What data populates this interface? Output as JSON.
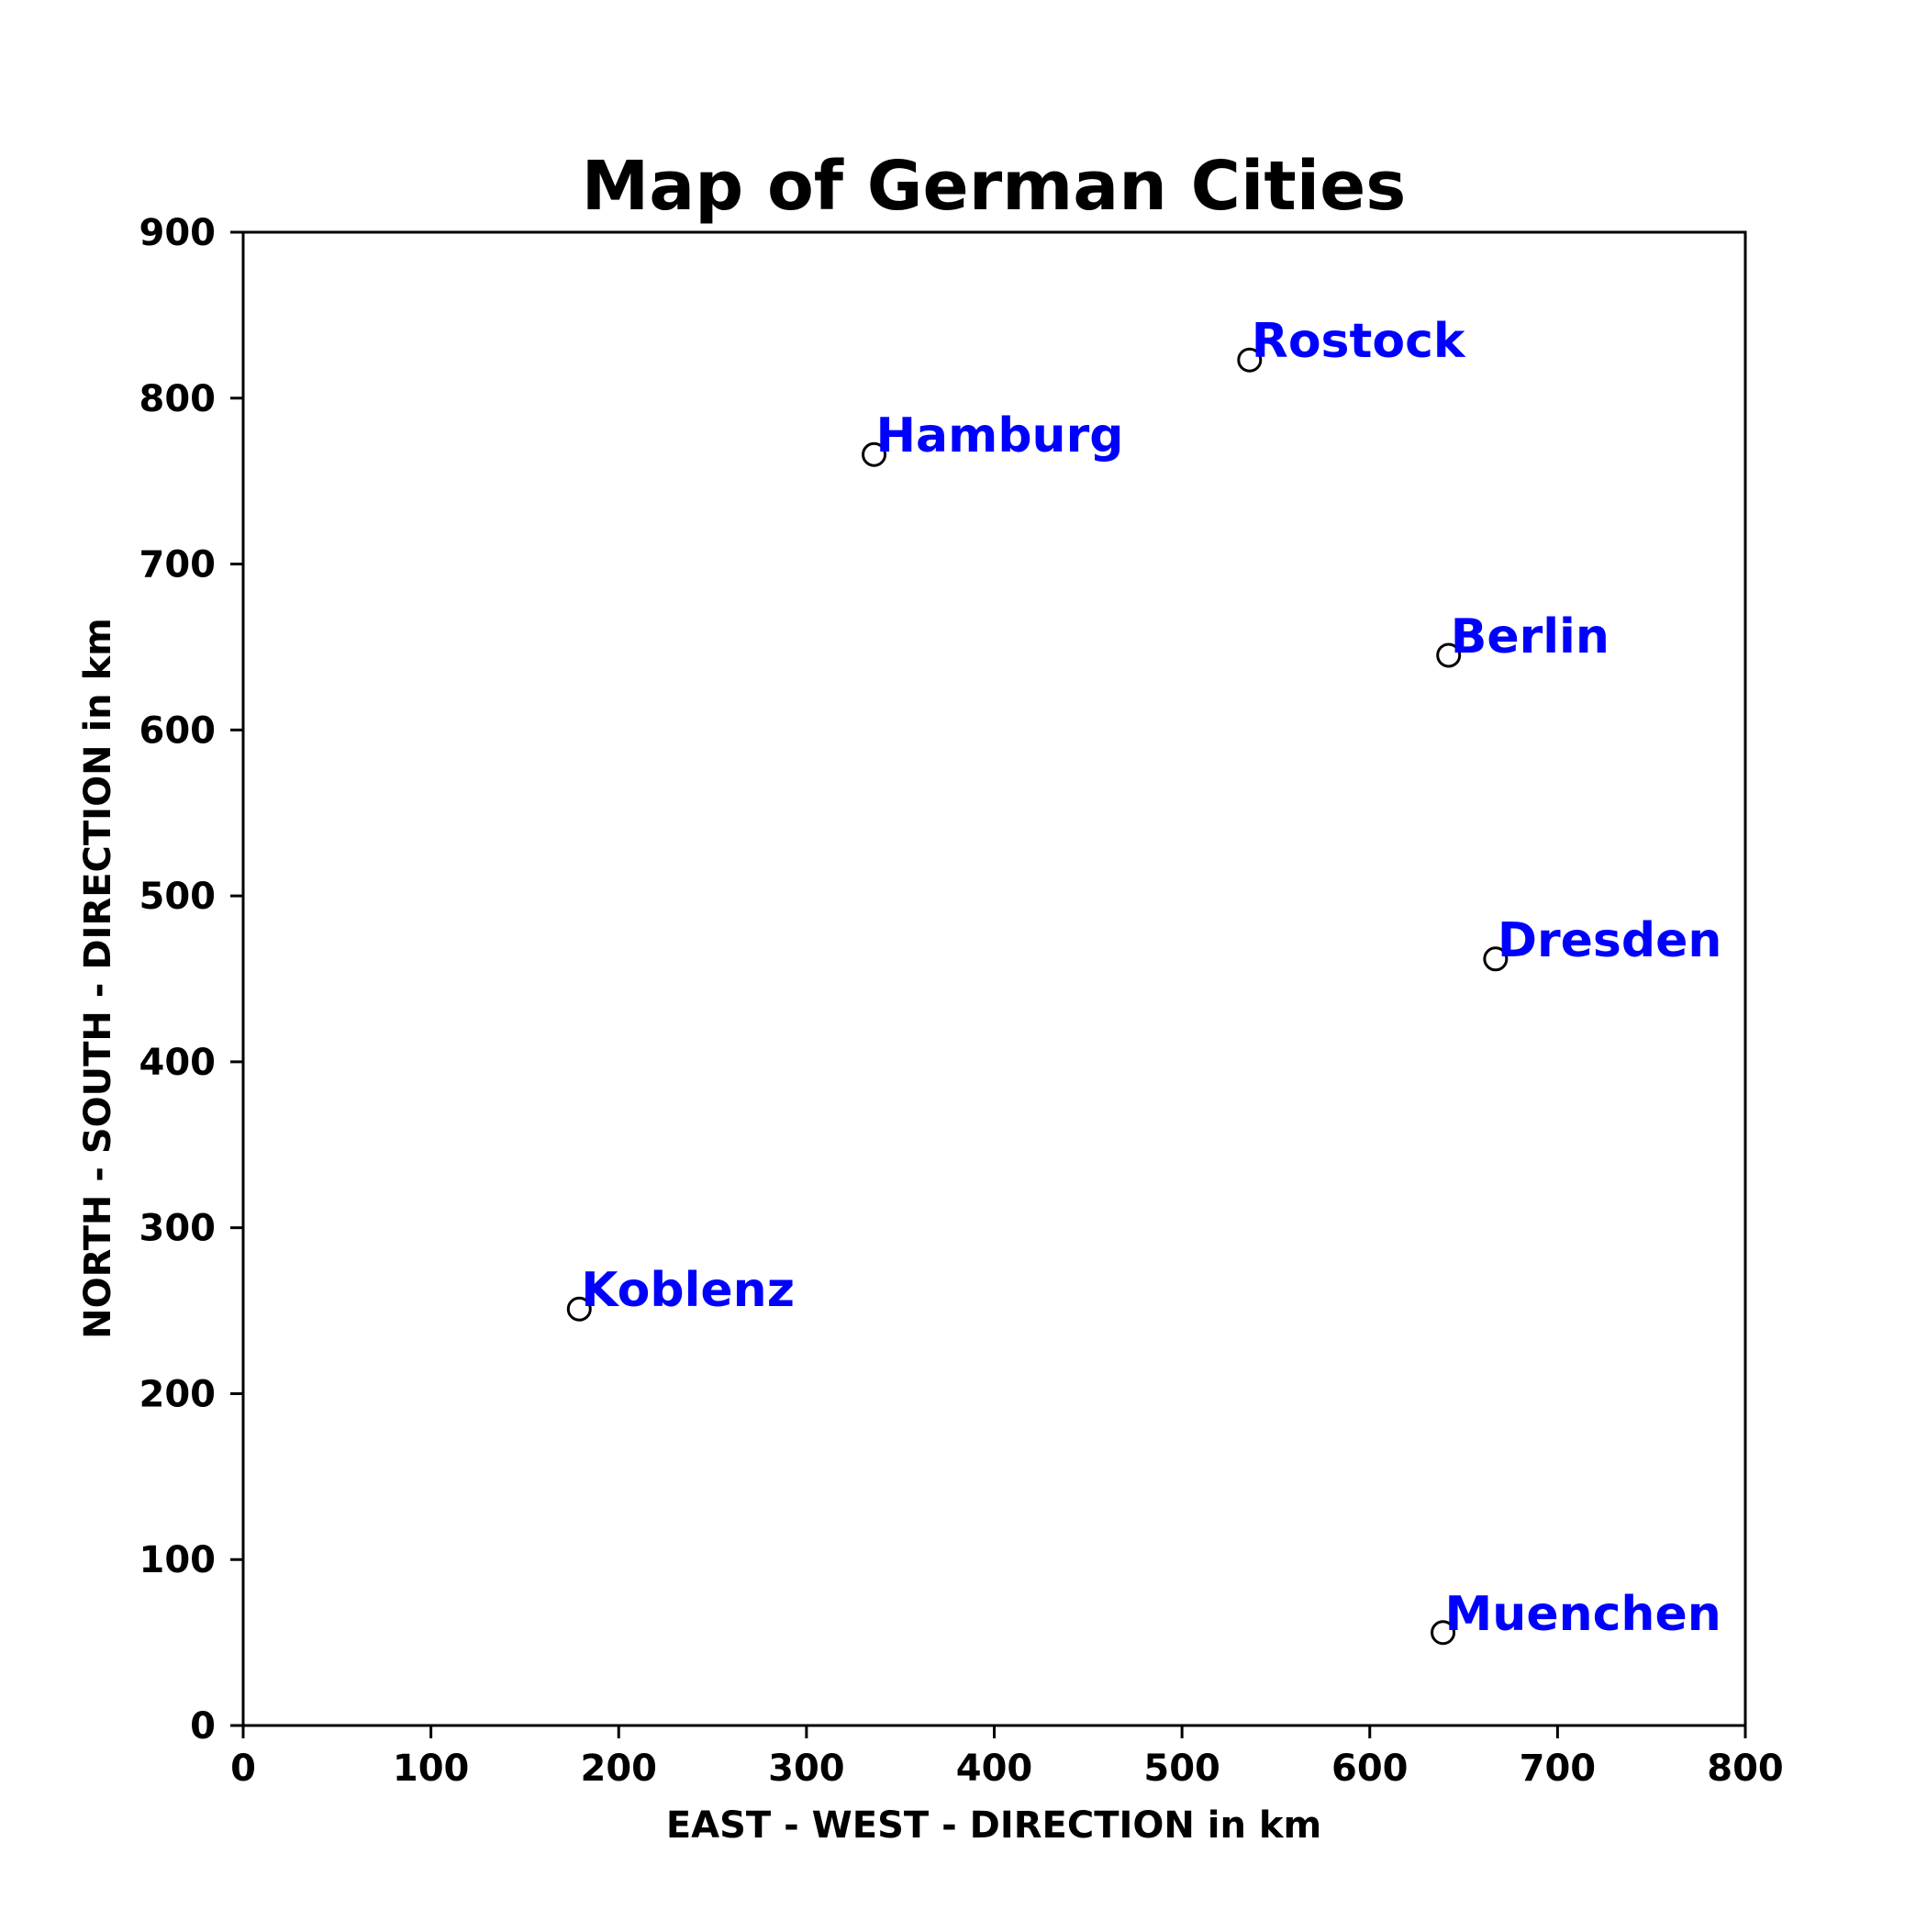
{
  "chart_data": {
    "type": "scatter",
    "title": "Map of German Cities",
    "xlabel": "EAST - WEST - DIRECTION in km",
    "ylabel": "NORTH - SOUTH - DIRECTION in km",
    "xlim": [
      0,
      800
    ],
    "ylim": [
      0,
      900
    ],
    "xticks": [
      0,
      100,
      200,
      300,
      400,
      500,
      600,
      700,
      800
    ],
    "yticks": [
      0,
      100,
      200,
      300,
      400,
      500,
      600,
      700,
      800,
      900
    ],
    "grid": false,
    "marker": "open-circle",
    "label_color": "#0000ff",
    "marker_color": "#000000",
    "points": [
      {
        "label": "Rostock",
        "x": 536,
        "y": 823
      },
      {
        "label": "Hamburg",
        "x": 336,
        "y": 766
      },
      {
        "label": "Berlin",
        "x": 642,
        "y": 645
      },
      {
        "label": "Dresden",
        "x": 667,
        "y": 462
      },
      {
        "label": "Koblenz",
        "x": 179,
        "y": 251
      },
      {
        "label": "Muenchen",
        "x": 639,
        "y": 56
      }
    ]
  }
}
